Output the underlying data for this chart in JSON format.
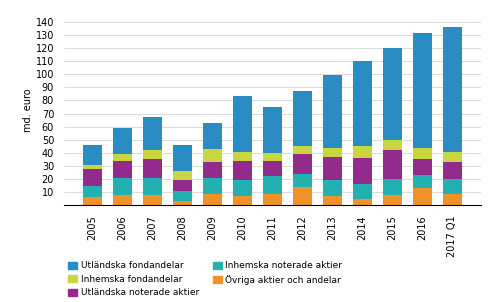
{
  "categories": [
    "2005",
    "2006",
    "2007",
    "2008",
    "2009",
    "2010",
    "2011",
    "2012",
    "2013",
    "2014",
    "2015",
    "2016",
    "2017 Q1"
  ],
  "series": {
    "Utländska fondandelar": [
      15,
      20,
      25,
      20,
      20,
      42,
      35,
      42,
      55,
      65,
      70,
      87,
      95
    ],
    "Inhemska fondandelar": [
      3,
      5,
      7,
      7,
      10,
      7,
      6,
      6,
      7,
      9,
      8,
      9,
      8
    ],
    "Utländska noterade aktier": [
      13,
      13,
      14,
      8,
      12,
      15,
      12,
      15,
      18,
      20,
      22,
      12,
      13
    ],
    "Inhemska noterade aktier": [
      9,
      13,
      13,
      8,
      12,
      12,
      13,
      10,
      12,
      11,
      12,
      10,
      11
    ],
    "Övriga aktier och andelar": [
      6,
      8,
      8,
      3,
      9,
      7,
      9,
      14,
      7,
      5,
      8,
      13,
      9
    ]
  },
  "colors": {
    "Utländska fondandelar": "#2B8CC4",
    "Inhemska fondandelar": "#C8D640",
    "Utländska noterade aktier": "#922B8C",
    "Inhemska noterade aktier": "#22B0B0",
    "Övriga aktier och andelar": "#F0922A"
  },
  "ylabel": "md. euro",
  "ylim": [
    0,
    145
  ],
  "yticks": [
    0,
    10,
    20,
    30,
    40,
    50,
    60,
    70,
    80,
    90,
    100,
    110,
    120,
    130,
    140
  ],
  "bg_color": "#ffffff",
  "grid_color": "#cccccc",
  "legend_col1": [
    "Utländska fondandelar",
    "Utländska noterade aktier",
    "Övriga aktier och andelar"
  ],
  "legend_col2": [
    "Inhemska fondandelar",
    "Inhemska noterade aktier"
  ],
  "stack_order": [
    "Övriga aktier och andelar",
    "Inhemska noterade aktier",
    "Utländska noterade aktier",
    "Inhemska fondandelar",
    "Utländska fondandelar"
  ]
}
